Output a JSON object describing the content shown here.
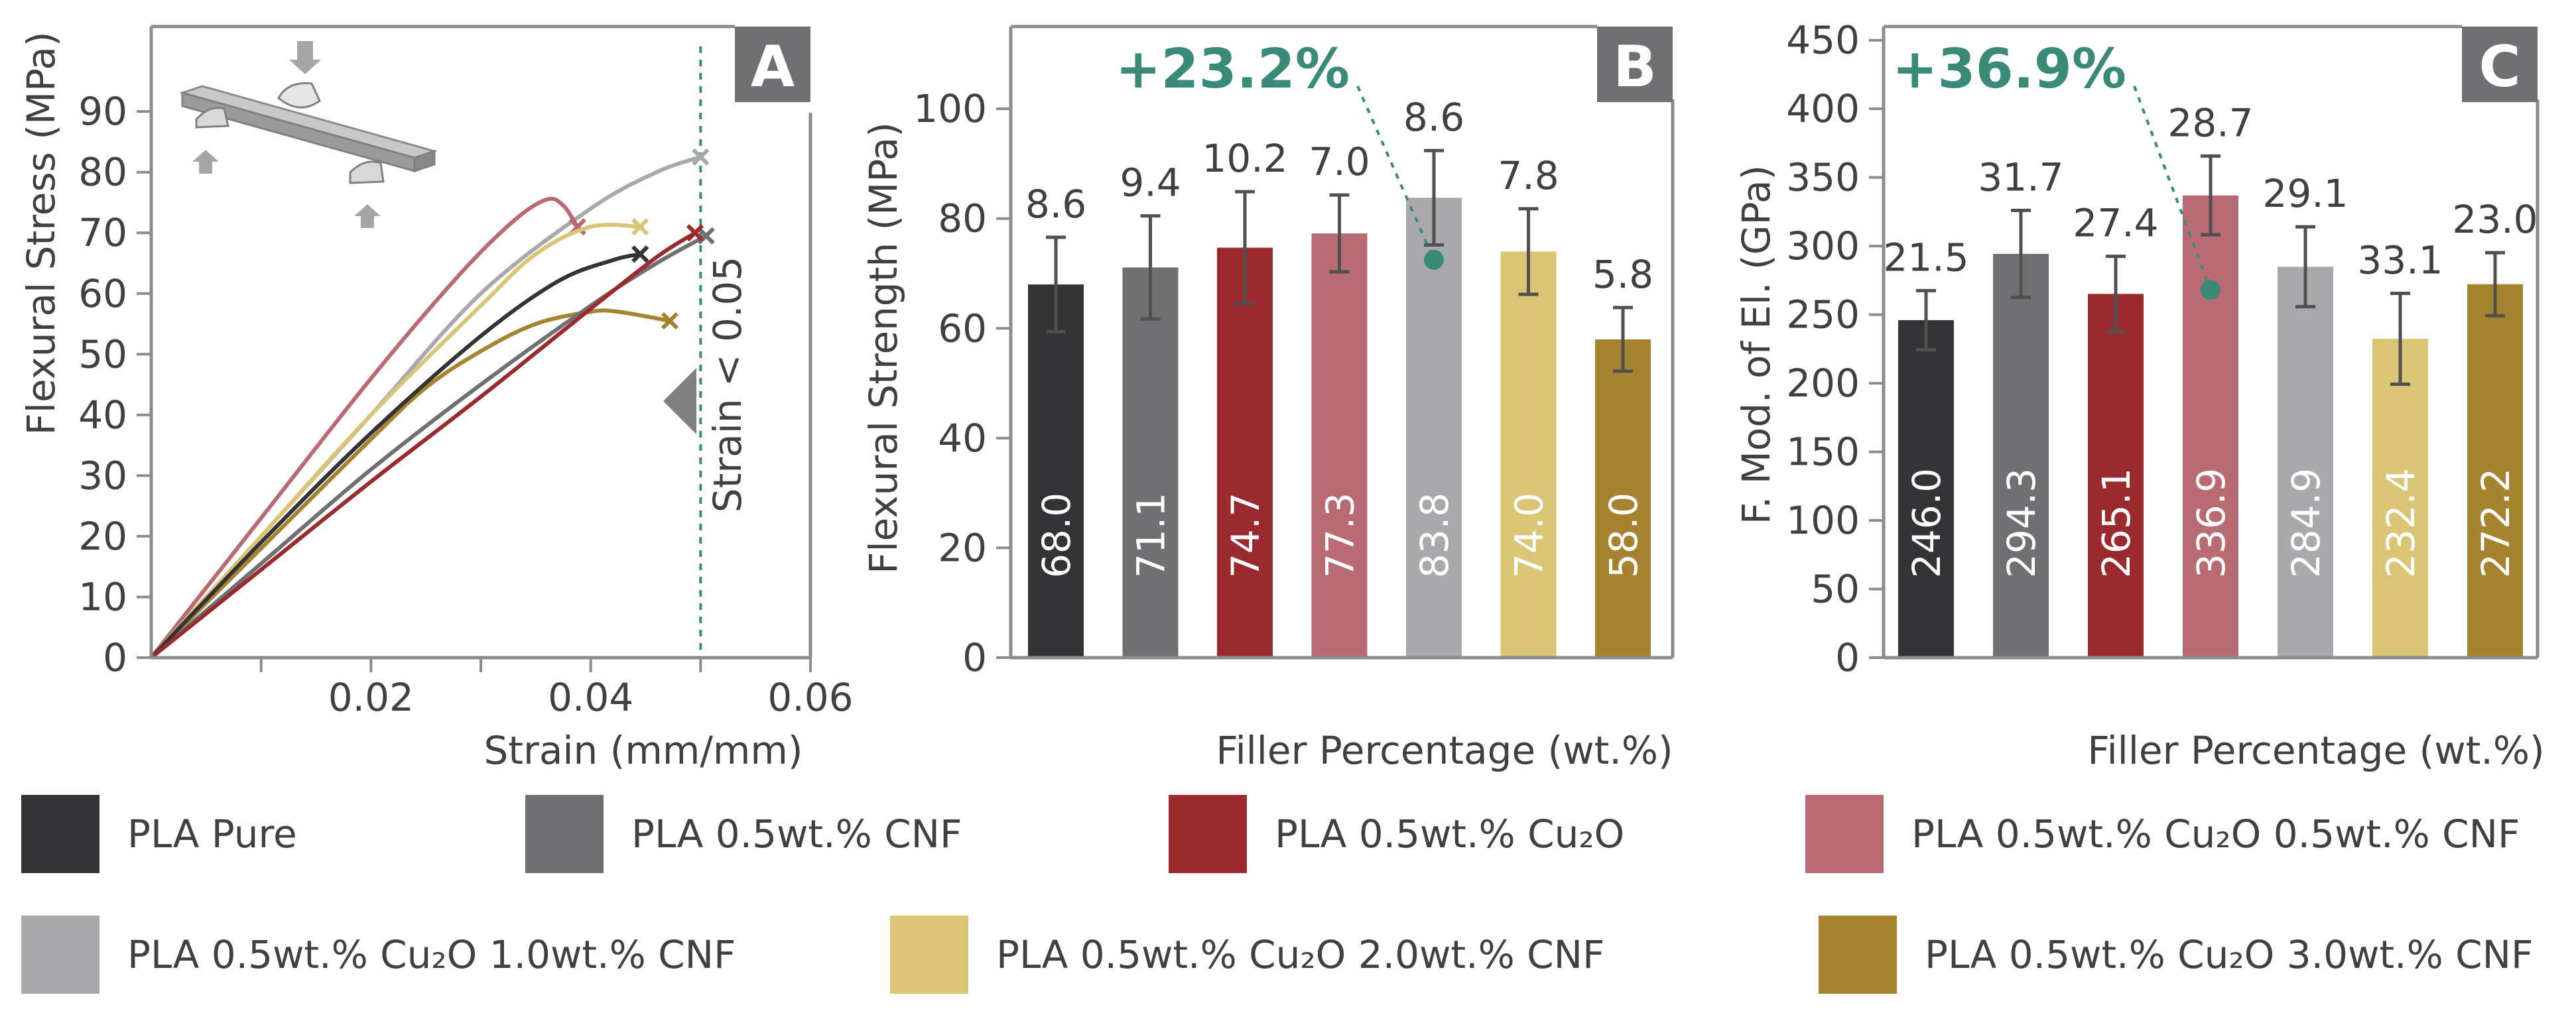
{
  "colors": {
    "axis": "#8c8c8c",
    "text": "#404040",
    "panel_badge": "#707072",
    "error_bar": "#505050",
    "annotation": "#3a8a78",
    "series": [
      "#333235",
      "#707072",
      "#9b2a2e",
      "#b96b73",
      "#a9a9ac",
      "#d9c575",
      "#a6832e"
    ]
  },
  "legend": [
    {
      "label": "PLA Pure"
    },
    {
      "label": "PLA 0.5wt.% CNF"
    },
    {
      "label": "PLA 0.5wt.% Cu₂O"
    },
    {
      "label": "PLA 0.5wt.% Cu₂O 0.5wt.% CNF"
    },
    {
      "label": "PLA 0.5wt.% Cu₂O 1.0wt.% CNF"
    },
    {
      "label": "PLA 0.5wt.% Cu₂O 2.0wt.% CNF"
    },
    {
      "label": "PLA 0.5wt.% Cu₂O 3.0wt.% CNF"
    }
  ],
  "chart_data": [
    {
      "panel": "A",
      "type": "line",
      "xlabel": "Strain (mm/mm)",
      "ylabel": "Flexural Stress (MPa)",
      "xlim": [
        0,
        0.06
      ],
      "ylim": [
        0,
        100
      ],
      "xticks": [
        0.02,
        0.04,
        0.06
      ],
      "xtick_labels": [
        "0.02",
        "0.04",
        "0.06"
      ],
      "yticks": [
        0,
        10,
        20,
        30,
        40,
        50,
        60,
        70,
        80,
        90
      ],
      "threshold_x": 0.05,
      "threshold_label": "Strain < 0.05",
      "series": [
        {
          "name": "PLA Pure",
          "x": [
            0,
            0.01,
            0.02,
            0.03,
            0.037,
            0.042,
            0.0445
          ],
          "y": [
            0,
            19,
            37,
            53,
            62,
            65.5,
            66.5
          ]
        },
        {
          "name": "PLA 0.5wt.% CNF",
          "x": [
            0,
            0.01,
            0.02,
            0.03,
            0.04,
            0.046,
            0.0505
          ],
          "y": [
            0,
            15.5,
            31,
            45,
            58,
            65,
            69.5
          ]
        },
        {
          "name": "PLA 0.5wt.% Cu₂O",
          "x": [
            0,
            0.01,
            0.02,
            0.03,
            0.04,
            0.046,
            0.0495
          ],
          "y": [
            0,
            14.5,
            29,
            43,
            57.5,
            66,
            70
          ]
        },
        {
          "name": "PLA 0.5wt.% Cu₂O 0.5wt.% CNF",
          "x": [
            0,
            0.01,
            0.02,
            0.028,
            0.033,
            0.036,
            0.0375,
            0.0388
          ],
          "y": [
            0,
            23,
            46,
            63,
            72,
            75.5,
            74.5,
            71
          ]
        },
        {
          "name": "PLA 0.5wt.% Cu₂O 1.0wt.% CNF",
          "x": [
            0,
            0.01,
            0.02,
            0.03,
            0.04,
            0.046,
            0.05
          ],
          "y": [
            0,
            20,
            40,
            60,
            74,
            80,
            82.5
          ]
        },
        {
          "name": "PLA 0.5wt.% Cu₂O 2.0wt.% CNF",
          "x": [
            0,
            0.01,
            0.02,
            0.03,
            0.035,
            0.04,
            0.0445
          ],
          "y": [
            0,
            20,
            40,
            58,
            66.5,
            71,
            71
          ]
        },
        {
          "name": "PLA 0.5wt.% Cu₂O 3.0wt.% CNF",
          "x": [
            0,
            0.01,
            0.02,
            0.025,
            0.03,
            0.035,
            0.04,
            0.0425,
            0.0472
          ],
          "y": [
            0,
            18,
            36,
            44.5,
            50.5,
            55,
            57,
            57,
            55.5
          ]
        }
      ]
    },
    {
      "panel": "B",
      "type": "bar",
      "xlabel": "Filler Percentage (wt.%)",
      "ylabel": "Flexural Strength (MPa)",
      "ylim": [
        0,
        115
      ],
      "yticks": [
        0,
        20,
        40,
        60,
        80,
        100
      ],
      "categories": [
        "PLA Pure",
        "PLA 0.5wt.% CNF",
        "PLA 0.5wt.% Cu₂O",
        "PLA 0.5wt.% Cu₂O 0.5wt.% CNF",
        "PLA 0.5wt.% Cu₂O 1.0wt.% CNF",
        "PLA 0.5wt.% Cu₂O 2.0wt.% CNF",
        "PLA 0.5wt.% Cu₂O 3.0wt.% CNF"
      ],
      "values": [
        68.0,
        71.1,
        74.7,
        77.3,
        83.8,
        74.0,
        58.0
      ],
      "value_labels": [
        "68.0",
        "71.1",
        "74.7",
        "77.3",
        "83.8",
        "74.0",
        "58.0"
      ],
      "errors": [
        8.6,
        9.4,
        10.2,
        7.0,
        8.6,
        7.8,
        5.8
      ],
      "error_labels": [
        "8.6",
        "9.4",
        "10.2",
        "7.0",
        "8.6",
        "7.8",
        "5.8"
      ],
      "annotation": {
        "text": "+23.2%",
        "bar_index": 4,
        "marker_value": 72.5
      }
    },
    {
      "panel": "C",
      "type": "bar",
      "xlabel": "Filler Percentage (wt.%)",
      "ylabel": "F. Mod. of El. (GPa)",
      "ylim": [
        0,
        460
      ],
      "yticks": [
        0,
        50,
        100,
        150,
        200,
        250,
        300,
        350,
        400,
        450
      ],
      "categories": [
        "PLA Pure",
        "PLA 0.5wt.% CNF",
        "PLA 0.5wt.% Cu₂O",
        "PLA 0.5wt.% Cu₂O 0.5wt.% CNF",
        "PLA 0.5wt.% Cu₂O 1.0wt.% CNF",
        "PLA 0.5wt.% Cu₂O 2.0wt.% CNF",
        "PLA 0.5wt.% Cu₂O 3.0wt.% CNF"
      ],
      "values": [
        246.0,
        294.3,
        265.1,
        336.9,
        284.9,
        232.4,
        272.2
      ],
      "value_labels": [
        "246.0",
        "294.3",
        "265.1",
        "336.9",
        "284.9",
        "232.4",
        "272.2"
      ],
      "errors": [
        21.5,
        31.7,
        27.4,
        28.7,
        29.1,
        33.1,
        23.0
      ],
      "error_labels": [
        "21.5",
        "31.7",
        "27.4",
        "28.7",
        "29.1",
        "33.1",
        "23.0"
      ],
      "annotation": {
        "text": "+36.9%",
        "bar_index": 3,
        "marker_value": 268
      }
    }
  ]
}
